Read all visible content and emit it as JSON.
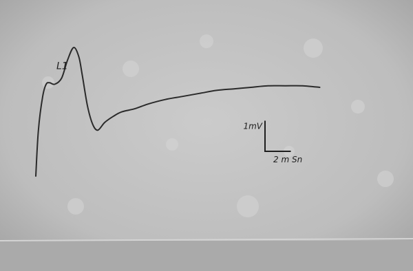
{
  "chart_data": {
    "type": "line",
    "title": "",
    "xlabel": "",
    "ylabel": "",
    "grid": false,
    "x_unit": "ms",
    "y_unit": "mV",
    "series": [
      {
        "x": [
          0,
          0.3,
          0.8,
          1.2,
          1.6,
          2.2,
          3.0,
          3.7,
          4.4,
          5.0,
          5.4,
          6.0,
          6.6,
          7.2,
          8.0,
          9.0,
          10.0,
          11.5,
          13.0,
          15.0,
          17.0,
          19.0,
          21.0,
          23.0,
          25.0,
          27.0,
          29.0,
          31.0,
          33.0
        ],
        "y": [
          0.0,
          1.5,
          2.6,
          3.0,
          3.05,
          3.0,
          3.2,
          3.8,
          4.2,
          3.9,
          3.3,
          2.3,
          1.7,
          1.5,
          1.75,
          1.95,
          2.1,
          2.2,
          2.35,
          2.5,
          2.6,
          2.7,
          2.8,
          2.85,
          2.9,
          2.95,
          2.95,
          2.95,
          2.9
        ]
      }
    ],
    "annotations": [
      {
        "text": "L1",
        "x": 2.4,
        "y": 3.5
      }
    ],
    "scale_bar": {
      "vertical_value": 1,
      "vertical_label": "1mV",
      "horizontal_value": 2,
      "horizontal_label": "2 m Sn"
    }
  },
  "colors": {
    "background": "#b9b9b9",
    "trace": "#2a2a2a"
  }
}
